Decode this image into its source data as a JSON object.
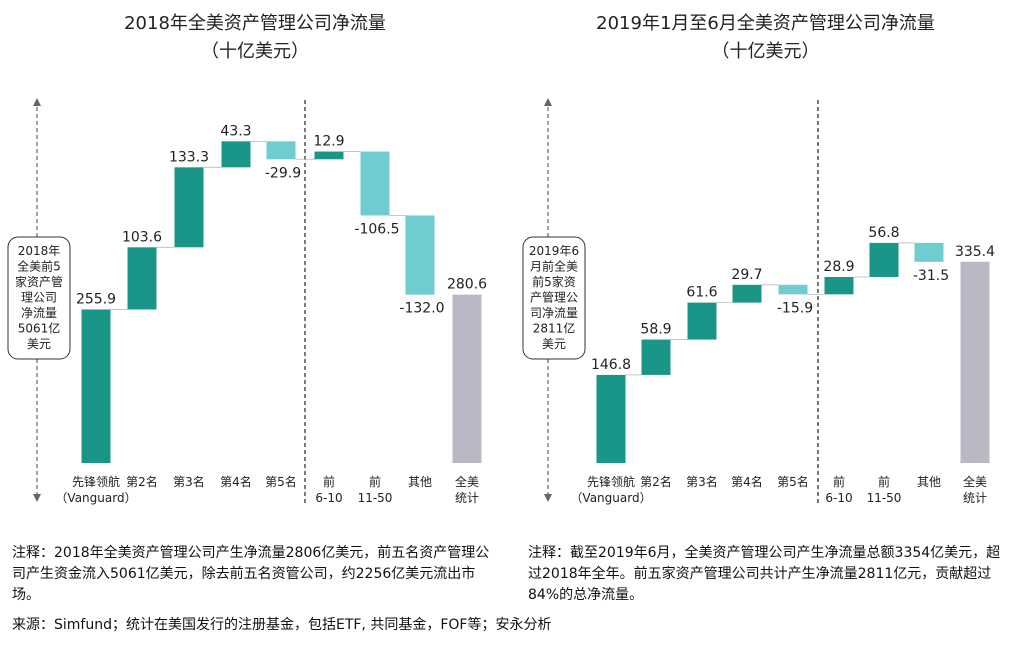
{
  "panels": [
    {
      "title_line1": "2018年全美资产管理公司净流量",
      "title_line2": "（十亿美元）",
      "note": "注释：2018年全美资产管理公司产生净流量2806亿美元，前五名资产管理公司产生资金流入5061亿美元，除去前五名资管公司，约2256亿美元流出市场。"
    },
    {
      "title_line1": "2019年1月至6月全美资产管理公司净流量",
      "title_line2": "（十亿美元）",
      "note": "注释：截至2019年6月，全美资产管理公司产生净流量总额3354亿美元，超过2018年全年。前五家资产管理公司共计产生净流量2811亿元，贡献超过84%的总净流量。"
    }
  ],
  "source": "来源：Simfund；统计在美国发行的注册基金，包括ETF, 共同基金，FOF等；安永分析",
  "colors": {
    "positive": "#1a9688",
    "negative": "#6fcdd1",
    "total": "#b9b8c5",
    "axis": "#666666",
    "connector": "#bbbbbb"
  },
  "chart_data": [
    {
      "type": "waterfall",
      "title": "2018年全美资产管理公司净流量",
      "subtitle": "（十亿美元）",
      "unit": "十亿美元",
      "annotation": [
        "2018年",
        "全美前5",
        "家资产管",
        "理公司",
        "净流量",
        "5061亿",
        "美元"
      ],
      "categories": [
        [
          "先锋领航",
          "（Vanguard）"
        ],
        [
          "第2名"
        ],
        [
          "第3名"
        ],
        [
          "第4名"
        ],
        [
          "第5名"
        ],
        [
          "前",
          "6-10"
        ],
        [
          "前",
          "11-50"
        ],
        [
          "其他"
        ],
        [
          "全美",
          "统计"
        ]
      ],
      "values": [
        255.9,
        103.6,
        133.3,
        43.3,
        -29.9,
        12.9,
        -106.5,
        -132.0,
        280.6
      ],
      "labels": [
        "255.9",
        "103.6",
        "133.3",
        "43.3",
        "-29.9",
        "12.9",
        "-106.5",
        "-132.0",
        "280.6"
      ],
      "kinds": [
        "pos",
        "pos",
        "pos",
        "pos",
        "neg",
        "pos",
        "neg",
        "neg",
        "total"
      ]
    },
    {
      "type": "waterfall",
      "title": "2019年1月至6月全美资产管理公司净流量",
      "subtitle": "（十亿美元）",
      "unit": "十亿美元",
      "annotation": [
        "2019年6",
        "月前全美",
        "前5家资",
        "产管理公",
        "司净流量",
        "2811亿",
        "美元"
      ],
      "categories": [
        [
          "先锋领航",
          "（Vanguard）"
        ],
        [
          "第2名"
        ],
        [
          "第3名"
        ],
        [
          "第4名"
        ],
        [
          "第5名"
        ],
        [
          "前",
          "6-10"
        ],
        [
          "前",
          "11-50"
        ],
        [
          "其他"
        ],
        [
          "全美",
          "统计"
        ]
      ],
      "values": [
        146.8,
        58.9,
        61.6,
        29.7,
        -15.9,
        28.9,
        56.8,
        -31.5,
        335.4
      ],
      "labels": [
        "146.8",
        "58.9",
        "61.6",
        "29.7",
        "-15.9",
        "28.9",
        "56.8",
        "-31.5",
        "335.4"
      ],
      "kinds": [
        "pos",
        "pos",
        "pos",
        "pos",
        "neg",
        "pos",
        "pos",
        "neg",
        "total"
      ]
    }
  ]
}
